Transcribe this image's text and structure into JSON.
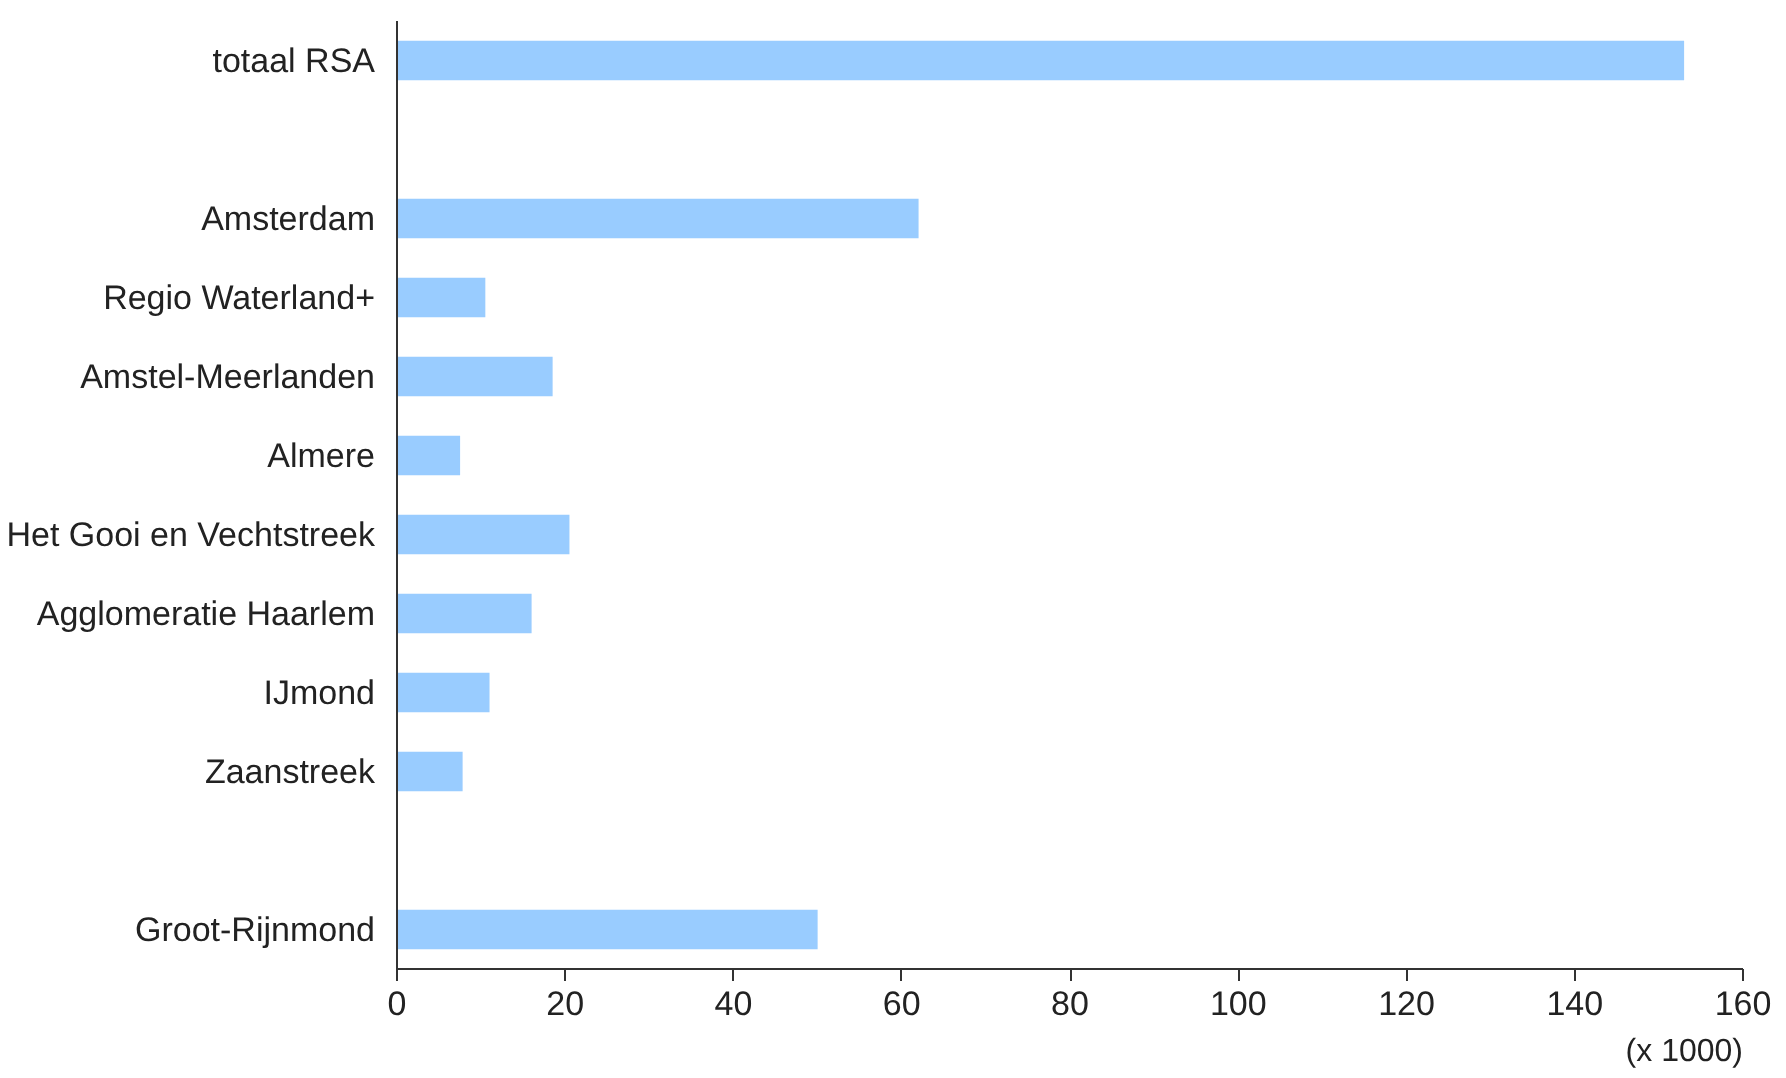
{
  "chart_data": {
    "type": "bar",
    "orientation": "horizontal",
    "categories": [
      "totaal RSA",
      null,
      "Amsterdam",
      "Regio Waterland+",
      "Amstel-Meerlanden",
      "Almere",
      "Het Gooi en Vechtstreek",
      "Agglomeratie Haarlem",
      "IJmond",
      "Zaanstreek",
      null,
      "Groot-Rijnmond"
    ],
    "values": [
      153,
      null,
      62,
      10.5,
      18.5,
      7.5,
      20.5,
      16,
      11,
      7.8,
      null,
      50
    ],
    "color": "#99ccff",
    "xlim": [
      0,
      160
    ],
    "xticks": [
      0,
      20,
      40,
      60,
      80,
      100,
      120,
      140,
      160
    ],
    "grid": false,
    "annotations": [
      "(x 1000)"
    ]
  }
}
